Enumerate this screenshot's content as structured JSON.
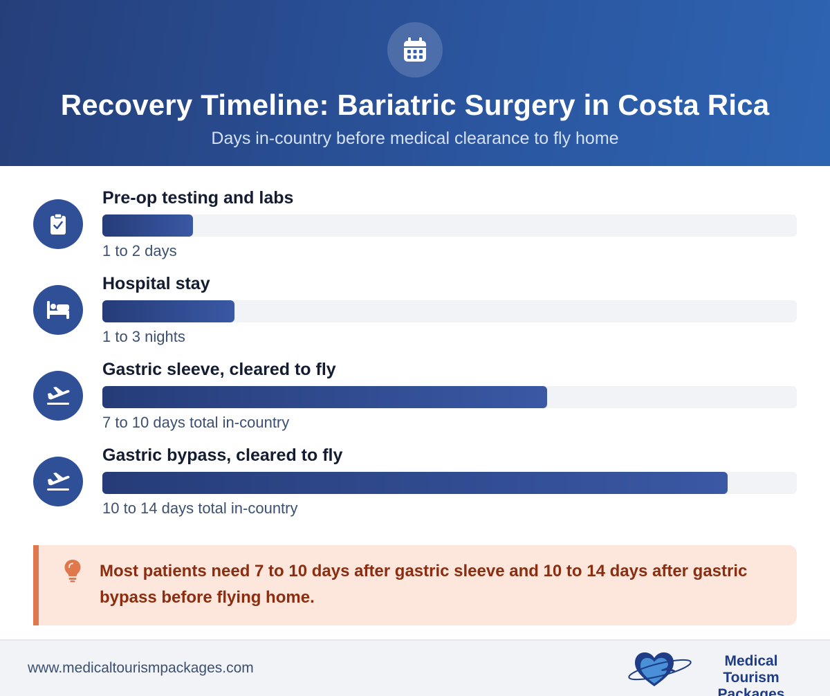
{
  "header": {
    "icon": "calendar-icon",
    "title": "Recovery Timeline: Bariatric Surgery in Costa Rica",
    "subtitle": "Days in-country before medical clearance to fly home"
  },
  "colors": {
    "header_gradient_start": "#253f7a",
    "header_gradient_end": "#2d64b2",
    "bar_fill_start": "#253c78",
    "bar_fill_end": "#3a58a4",
    "track": "#f2f3f6",
    "callout_bg": "#fde7dc",
    "callout_accent": "#e0784d",
    "callout_text": "#8a2d10"
  },
  "timeline": [
    {
      "icon": "clipboard-check-icon",
      "label": "Pre-op testing and labs",
      "value": "1 to 2 days",
      "fill_fraction": 0.13
    },
    {
      "icon": "bed-icon",
      "label": "Hospital stay",
      "value": "1 to 3 nights",
      "fill_fraction": 0.19
    },
    {
      "icon": "plane-departure-icon",
      "label": "Gastric sleeve, cleared to fly",
      "value": "7 to 10 days total in-country",
      "fill_fraction": 0.64
    },
    {
      "icon": "plane-departure-icon",
      "label": "Gastric bypass, cleared to fly",
      "value": "10 to 14 days total in-country",
      "fill_fraction": 0.9
    }
  ],
  "callout": {
    "icon": "lightbulb-icon",
    "text": "Most patients need 7 to 10 days after gastric sleeve and 10 to 14 days after gastric bypass before flying home."
  },
  "footer": {
    "url": "www.medicaltourismpackages.com",
    "logo_line1": "Medical Tourism",
    "logo_line2": "Packages"
  }
}
